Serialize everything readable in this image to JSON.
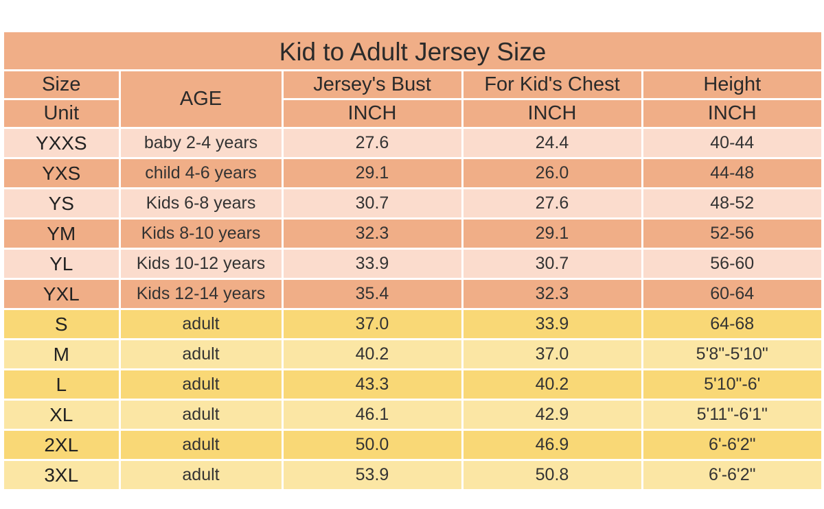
{
  "title": "Kid to Adult Jersey Size",
  "headers": {
    "size": "Size",
    "unit": "Unit",
    "age": "AGE",
    "bust": "Jersey's Bust",
    "chest": "For Kid's Chest",
    "height": "Height",
    "bust_unit": "INCH",
    "chest_unit": "INCH",
    "height_unit": "INCH"
  },
  "rows": [
    {
      "size": "YXXS",
      "age": "baby 2-4 years",
      "bust": "27.6",
      "chest": "24.4",
      "height": "40-44"
    },
    {
      "size": "YXS",
      "age": "child 4-6 years",
      "bust": "29.1",
      "chest": "26.0",
      "height": "44-48"
    },
    {
      "size": "YS",
      "age": "Kids 6-8 years",
      "bust": "30.7",
      "chest": "27.6",
      "height": "48-52"
    },
    {
      "size": "YM",
      "age": "Kids 8-10 years",
      "bust": "32.3",
      "chest": "29.1",
      "height": "52-56"
    },
    {
      "size": "YL",
      "age": "Kids 10-12 years",
      "bust": "33.9",
      "chest": "30.7",
      "height": "56-60"
    },
    {
      "size": "YXL",
      "age": "Kids 12-14 years",
      "bust": "35.4",
      "chest": "32.3",
      "height": "60-64"
    },
    {
      "size": "S",
      "age": "adult",
      "bust": "37.0",
      "chest": "33.9",
      "height": "64-68"
    },
    {
      "size": "M",
      "age": "adult",
      "bust": "40.2",
      "chest": "37.0",
      "height": "5'8\"-5'10\""
    },
    {
      "size": "L",
      "age": "adult",
      "bust": "43.3",
      "chest": "40.2",
      "height": "5'10\"-6'"
    },
    {
      "size": "XL",
      "age": "adult",
      "bust": "46.1",
      "chest": "42.9",
      "height": "5'11\"-6'1\""
    },
    {
      "size": "2XL",
      "age": "adult",
      "bust": "50.0",
      "chest": "46.9",
      "height": "6'-6'2\""
    },
    {
      "size": "3XL",
      "age": "adult",
      "bust": "53.9",
      "chest": "50.8",
      "height": "6'-6'2\""
    }
  ],
  "colors": {
    "header": "#f0ae87",
    "kid_light": "#fbdccd",
    "kid_dark": "#f0ae87",
    "adult_dark": "#f9d876",
    "adult_light": "#fbe6a4"
  }
}
